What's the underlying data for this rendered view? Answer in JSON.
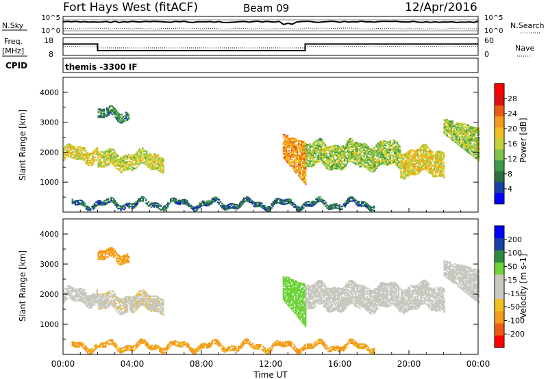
{
  "header": {
    "title": "Fort Hays West (fitACF)",
    "beam": "Beam 09",
    "date": "12/Apr/2016"
  },
  "status_panels": {
    "nsky_label": "N.Sky",
    "nsearch_label": "N.Search",
    "freq_label_line1": "Freq.",
    "freq_label_line2": "[MHz]",
    "nave_label": "Nave",
    "cpid_label": "CPID",
    "cpid_value": "themis -3300 IF",
    "noise_ticks_left": [
      "10^5",
      "10^0"
    ],
    "noise_ticks_right": [
      "10^5",
      "10^0"
    ],
    "freq_ticks_left": [
      "18",
      "8"
    ],
    "freq_ticks_right": [
      "60",
      "0"
    ],
    "freq_series": {
      "x": [
        0,
        2.0,
        2.0,
        14.0,
        14.0,
        24
      ],
      "freq_mhz": [
        14.5,
        14.5,
        10.5,
        10.5,
        14.5,
        14.5
      ]
    },
    "nave_series": {
      "x": [
        0,
        2.0,
        2.0,
        14.0,
        14.0,
        24
      ],
      "nave": [
        30,
        30,
        25,
        25,
        30,
        30
      ]
    }
  },
  "x_axis": {
    "label": "Time UT",
    "tick_labels": [
      "00:00",
      "04:00",
      "08:00",
      "12:00",
      "16:00",
      "20:00",
      "00:00"
    ]
  },
  "colors": {
    "power_scale": [
      "#0000ff",
      "#1a3fa8",
      "#2d6e3e",
      "#3c9a4a",
      "#7fc34b",
      "#c5d33a",
      "#f0c020",
      "#f59b1c",
      "#f05a14",
      "#e01010",
      "#ff0000"
    ],
    "velocity_scale": [
      "#ff0000",
      "#f05a14",
      "#f59b1c",
      "#f0c020",
      "#c8c8c0",
      "#c8c8c0",
      "#6fd33a",
      "#2d8a3e",
      "#1a3fa8",
      "#0000ff"
    ]
  },
  "chart_data": [
    {
      "type": "heatmap",
      "panel": "power",
      "ylabel": "Slant Range [km]",
      "xlabel": "",
      "xlim": [
        0,
        24
      ],
      "ylim": [
        0,
        4500
      ],
      "y_ticks": [
        1000,
        2000,
        3000,
        4000
      ],
      "colorbar": {
        "label": "Power [dB]",
        "range": [
          0,
          32
        ],
        "ticks": [
          "4",
          "8",
          "12",
          "16",
          "20",
          "24",
          "28"
        ]
      },
      "echo_bands": [
        {
          "t0": 0.0,
          "t1": 2.0,
          "r_low": 1700,
          "r_high": 2150,
          "value": 18
        },
        {
          "t0": 2.0,
          "t1": 5.8,
          "r_low": 1450,
          "r_high": 1950,
          "value": 16
        },
        {
          "t0": 2.0,
          "t1": 3.8,
          "r_low": 3100,
          "r_high": 3400,
          "value": 8
        },
        {
          "t0": 12.7,
          "t1": 14.0,
          "r_low": 900,
          "r_high": 2300,
          "value": 22
        },
        {
          "t0": 14.0,
          "t1": 19.5,
          "r_low": 1500,
          "r_high": 2300,
          "value": 14
        },
        {
          "t0": 19.5,
          "t1": 22.0,
          "r_low": 1250,
          "r_high": 2100,
          "value": 18
        },
        {
          "t0": 22.0,
          "t1": 24.0,
          "r_low": 1700,
          "r_high": 2800,
          "value": 14
        },
        {
          "t0": 0.5,
          "t1": 18.0,
          "r_low": 180,
          "r_high": 350,
          "value": 6
        }
      ]
    },
    {
      "type": "heatmap",
      "panel": "velocity",
      "ylabel": "Slant Range [km]",
      "xlabel": "Time UT",
      "xlim": [
        0,
        24
      ],
      "ylim": [
        0,
        4500
      ],
      "y_ticks": [
        1000,
        2000,
        3000,
        4000
      ],
      "colorbar": {
        "label": "Velocity [m s-1]",
        "ticks": [
          "200",
          "100",
          "50",
          "15",
          "-15",
          "-50",
          "-100",
          "-200"
        ]
      },
      "echo_bands": [
        {
          "t0": 0.0,
          "t1": 2.0,
          "r_low": 1700,
          "r_high": 2150,
          "value": 0
        },
        {
          "t0": 2.0,
          "t1": 5.8,
          "r_low": 1450,
          "r_high": 1950,
          "value": -5
        },
        {
          "t0": 2.0,
          "t1": 3.8,
          "r_low": 3100,
          "r_high": 3400,
          "value": -40
        },
        {
          "t0": 12.7,
          "t1": 14.0,
          "r_low": 900,
          "r_high": 2300,
          "value": 30
        },
        {
          "t0": 14.0,
          "t1": 22.0,
          "r_low": 1500,
          "r_high": 2300,
          "value": 0
        },
        {
          "t0": 22.0,
          "t1": 24.0,
          "r_low": 1700,
          "r_high": 2800,
          "value": 0
        },
        {
          "t0": 0.5,
          "t1": 18.0,
          "r_low": 180,
          "r_high": 350,
          "value": -40
        }
      ]
    }
  ]
}
